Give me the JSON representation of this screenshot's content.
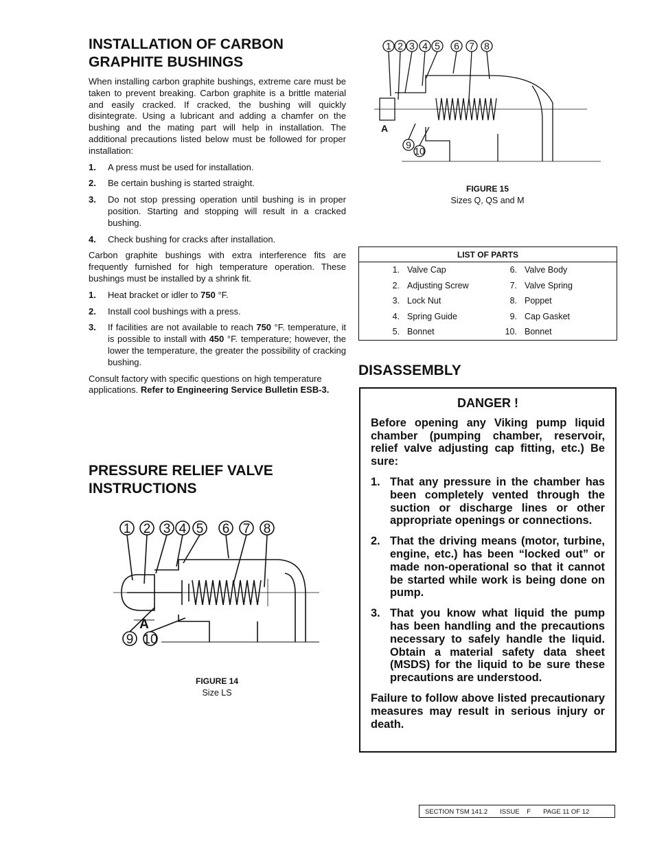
{
  "section1": {
    "title": "INSTALLATION OF CARBON GRAPHITE BUSHINGS",
    "intro": "When installing carbon graphite bushings, extreme care must be taken to prevent breaking. Carbon graphite is a brittle material and easily cracked. If cracked, the bushing will quickly disintegrate. Using a lubricant and adding a chamfer on the bushing and the mating part will help in installation. The additional precautions listed below must be followed for proper installation:",
    "steps": [
      {
        "number": "1.",
        "text": "A press must be used for installation."
      },
      {
        "number": "2.",
        "text": "Be certain bushing is started straight."
      },
      {
        "number": "3.",
        "text": "Do not stop pressing operation until bushing is in proper position. Starting and stopping will result in a cracked bushing."
      },
      {
        "number": "4.",
        "text": "Check bushing for cracks after installation."
      }
    ],
    "para2": "Carbon graphite bushings with extra interference fits are frequently furnished for high temperature operation. These bushings must be installed by a shrink fit.",
    "steps2": [
      {
        "number": "1.",
        "parts": [
          "Heat bracket or idler to ",
          "750",
          " °F."
        ]
      },
      {
        "number": "2.",
        "parts": [
          "Install cool bushings with a press."
        ]
      },
      {
        "number": "3.",
        "parts": [
          "If facilities are not available to reach ",
          "750",
          " °F. temperature, it is possible to install with ",
          "450",
          " °F. temperature; however, the lower the temperature, the greater the possibility of cracking bushing."
        ]
      }
    ],
    "closing": [
      "Consult factory with specific questions on high temperature applications. ",
      "Refer to Engineering Service Bulletin ESB-3."
    ]
  },
  "section2": {
    "title": "PRESSURE RELIEF VALVE INSTRUCTIONS"
  },
  "figure14": {
    "callouts": [
      "1",
      "2",
      "3",
      "4",
      "5",
      "6",
      "7",
      "8",
      "9",
      "10",
      "A"
    ],
    "label": "FIGURE 14",
    "caption": "Size LS"
  },
  "figure15": {
    "callouts": [
      "1",
      "2",
      "3",
      "4",
      "5",
      "6",
      "7",
      "8",
      "9",
      "10",
      "A"
    ],
    "label": "FIGURE 15",
    "caption": "Sizes Q, QS and M"
  },
  "parts_table": {
    "title": "LIST OF PARTS",
    "rows": [
      [
        "1.",
        "Valve Cap",
        "6.",
        "Valve Body"
      ],
      [
        "2.",
        "Adjusting Screw",
        "7.",
        "Valve Spring"
      ],
      [
        "3.",
        "Lock Nut",
        "8.",
        "Poppet"
      ],
      [
        "4.",
        "Spring Guide",
        "9.",
        "Cap Gasket"
      ],
      [
        "5.",
        "Bonnet",
        "10.",
        "Bonnet"
      ]
    ]
  },
  "disassembly": {
    "title": "DISASSEMBLY",
    "danger_title": "DANGER !",
    "intro": "Before opening any Viking pump liquid chamber (pumping chamber, reservoir, relief valve adjusting cap fitting, etc.) Be sure:",
    "items": [
      {
        "number": "1.",
        "text": "That any pressure in the chamber has been completely vented through the suction or discharge lines or other appropriate openings or connections."
      },
      {
        "number": "2.",
        "text": "That the driving means (motor, turbine, engine, etc.) has been “locked out” or made non-operational so that it cannot be started while work is being done on pump."
      },
      {
        "number": "3.",
        "text": "That you know what liquid the pump has been handling and the precautions necessary to safely handle the liquid. Obtain a material safety data sheet (MSDS) for the liquid to be sure these precautions are understood."
      }
    ],
    "warning": "Failure to follow above listed precautionary measures may result in serious injury or death."
  },
  "footer": {
    "section": "SECTION TSM 141.2",
    "issue": "ISSUE",
    "issue_value": "F",
    "page": "PAGE 11 OF 12"
  }
}
